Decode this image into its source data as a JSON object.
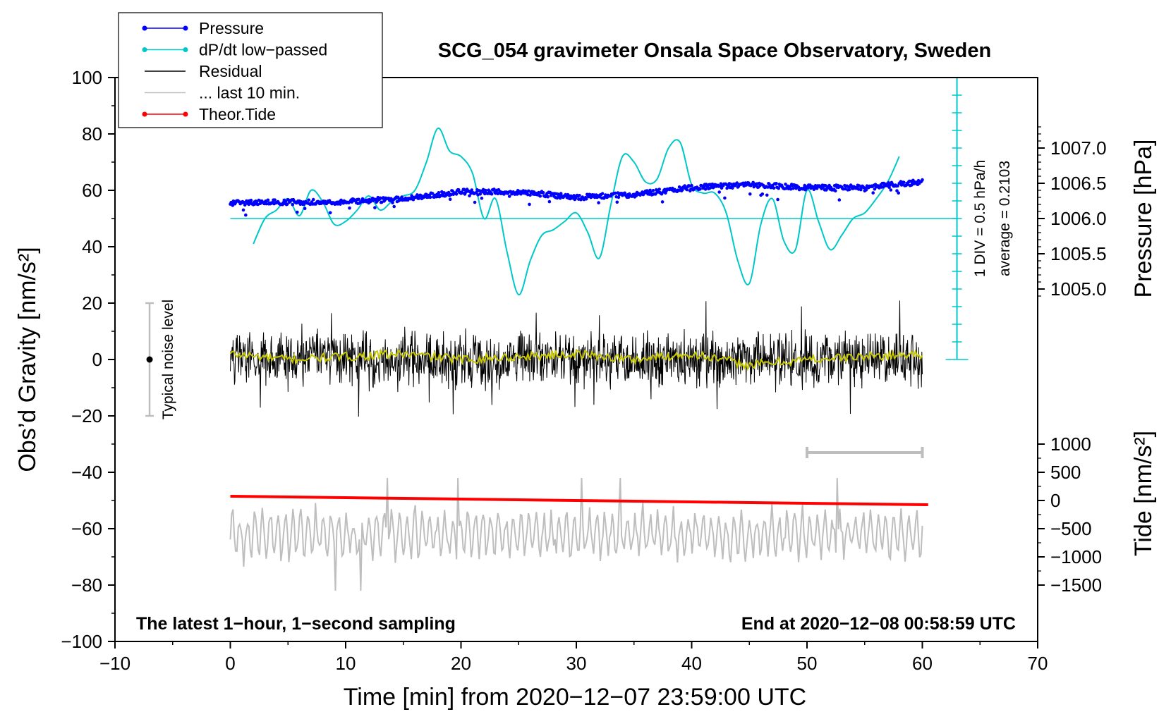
{
  "chart_data": {
    "type": "line",
    "title": "SCG_054 gravimeter Onsala Space Observatory, Sweden",
    "xlabel": "Time [min] from 2020−12−07 23:59:00 UTC",
    "ylabel_left": "Obs’d Gravity [nm/s²]",
    "ylabel_pressure": "Pressure [hPa]",
    "ylabel_tide": "Tide [nm/s²]",
    "xlim": [
      -10,
      70
    ],
    "ylim": [
      -100,
      100
    ],
    "x_ticks": [
      -10,
      0,
      10,
      20,
      30,
      40,
      50,
      60,
      70
    ],
    "x_tick_labels": [
      "−10",
      "0",
      "10",
      "20",
      "30",
      "40",
      "50",
      "60",
      "70"
    ],
    "y_ticks": [
      100,
      80,
      60,
      40,
      20,
      0,
      -20,
      -40,
      -60,
      -80,
      -100
    ],
    "y_tick_labels": [
      "100",
      "80",
      "60",
      "40",
      "20",
      "0",
      "−20",
      "−40",
      "−60",
      "−80",
      "−100"
    ],
    "pressure_axis": {
      "ticks": [
        1007.0,
        1006.5,
        1006.0,
        1005.5,
        1005.0
      ],
      "tick_labels": [
        "1007.0",
        "1006.5",
        "1006.0",
        "1005.5",
        "1005.0"
      ],
      "gravity_equiv_at_1006": 50,
      "nm_per_hpa": 25
    },
    "tide_axis": {
      "ticks": [
        1000,
        500,
        0,
        -500,
        -1000,
        -1500
      ],
      "tick_labels": [
        "1000",
        "500",
        "0",
        "−500",
        "−1000",
        "−1500"
      ],
      "gravity_equiv_at_0": -50,
      "nm_per_unit": 0.02
    },
    "legend": [
      {
        "label": "Pressure",
        "color": "#0000ff",
        "marker": true
      },
      {
        "label": "dP/dt low−passed",
        "color": "#00c8c8",
        "marker": true
      },
      {
        "label": "Residual",
        "color": "#000000",
        "marker": false
      },
      {
        "label": "... last 10 min.",
        "color": "#bebebe",
        "marker": false
      },
      {
        "label": "Theor.Tide",
        "color": "#ff0000",
        "marker": true
      }
    ],
    "series": [
      {
        "name": "Pressure",
        "color": "#0000ff",
        "x": [
          0,
          5,
          10,
          15,
          20,
          25,
          30,
          35,
          40,
          45,
          50,
          55,
          60
        ],
        "y": [
          55.5,
          55.8,
          56,
          57,
          59.5,
          59.5,
          57.5,
          58.5,
          61,
          62,
          61,
          61,
          63
        ]
      },
      {
        "name": "dP/dt low−passed",
        "color": "#00c8c8",
        "x": [
          2,
          3,
          4,
          5,
          6,
          7,
          8,
          9,
          10,
          11,
          12,
          13,
          14,
          15,
          16,
          17,
          18,
          19,
          20,
          21,
          22,
          23,
          24,
          25,
          26,
          27,
          28,
          29,
          30,
          31,
          32,
          33,
          34,
          35,
          36,
          37,
          38,
          39,
          40,
          41,
          42,
          43,
          44,
          45,
          46,
          47,
          48,
          49,
          50,
          51,
          52,
          53,
          54,
          55,
          56,
          57,
          58
        ],
        "y": [
          41,
          50,
          53,
          57,
          51,
          60,
          56,
          48,
          49,
          53,
          58,
          53,
          56,
          58,
          60,
          70,
          82,
          74,
          72,
          66,
          50,
          57,
          38,
          23,
          35,
          44,
          46,
          49,
          52,
          45,
          36,
          55,
          72,
          70,
          63,
          64,
          75,
          77,
          62,
          59,
          59,
          52,
          35,
          27,
          48,
          57,
          42,
          39,
          60,
          49,
          39,
          44,
          50,
          52,
          57,
          63,
          72
        ]
      },
      {
        "name": "Residual",
        "color": "#000000",
        "x_range": [
          0,
          60
        ],
        "amplitude": 12,
        "center": 0
      },
      {
        "name": "Residual smoothed",
        "color": "#c8c800",
        "x": [
          0,
          5,
          10,
          15,
          20,
          25,
          30,
          35,
          40,
          45,
          50,
          55,
          60
        ],
        "y": [
          2,
          0,
          1,
          2,
          0,
          1,
          2,
          0,
          2,
          -2,
          0,
          1,
          2
        ]
      },
      {
        "name": "... last 10 min.",
        "color": "#bebebe",
        "x_range": [
          0,
          60
        ],
        "center": -62,
        "amplitude": 10
      },
      {
        "name": "Theor.Tide",
        "color": "#ff0000",
        "x": [
          0,
          10,
          20,
          30,
          40,
          50,
          60.5
        ],
        "y": [
          -48.5,
          -49,
          -49.5,
          -50,
          -50.5,
          -51,
          -51.5
        ]
      }
    ],
    "pressure_average_line": {
      "y": 50,
      "x_range": [
        0,
        63
      ]
    },
    "scale_bar": {
      "x": 63,
      "y_range": [
        0,
        100
      ],
      "step": 6.25,
      "label": "1 DIV = 0.5 hPa/h",
      "average_label": "average = 0.2103"
    },
    "noise_bar": {
      "x": -7,
      "y_range": [
        -20,
        20
      ],
      "center": 0,
      "label": "Typical noise level"
    },
    "last10_bar": {
      "x_range": [
        50,
        60
      ],
      "y": -33
    },
    "annotations": {
      "bottom_left": "The latest 1−hour, 1−second sampling",
      "bottom_right": "End at 2020−12−08 00:58:59 UTC"
    }
  }
}
